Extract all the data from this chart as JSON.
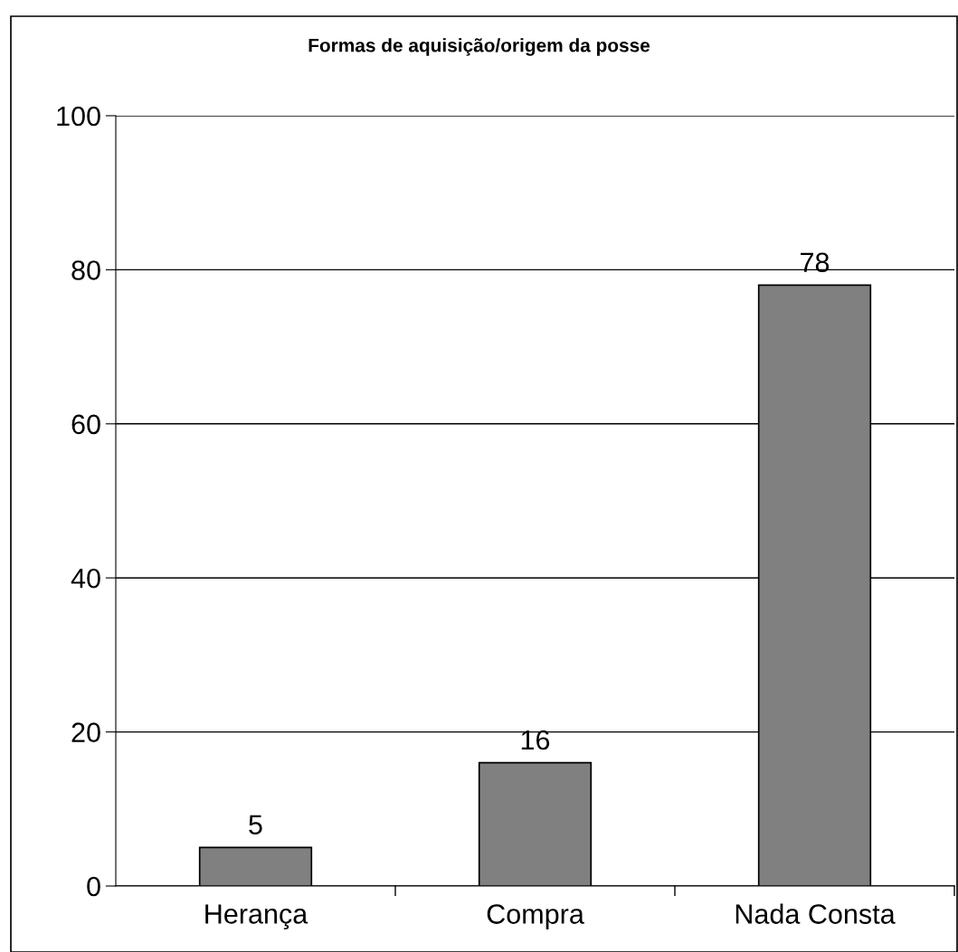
{
  "chart_data": {
    "type": "bar",
    "title": "Formas de aquisição/origem da posse",
    "categories": [
      "Herança",
      "Compra",
      "Nada Consta"
    ],
    "values": [
      5,
      16,
      78
    ],
    "color": "#808080",
    "data_labels": true,
    "ylim": [
      0,
      100
    ],
    "yticks": [
      0,
      20,
      40,
      60,
      80,
      100
    ],
    "grid": "y",
    "legend": false
  }
}
